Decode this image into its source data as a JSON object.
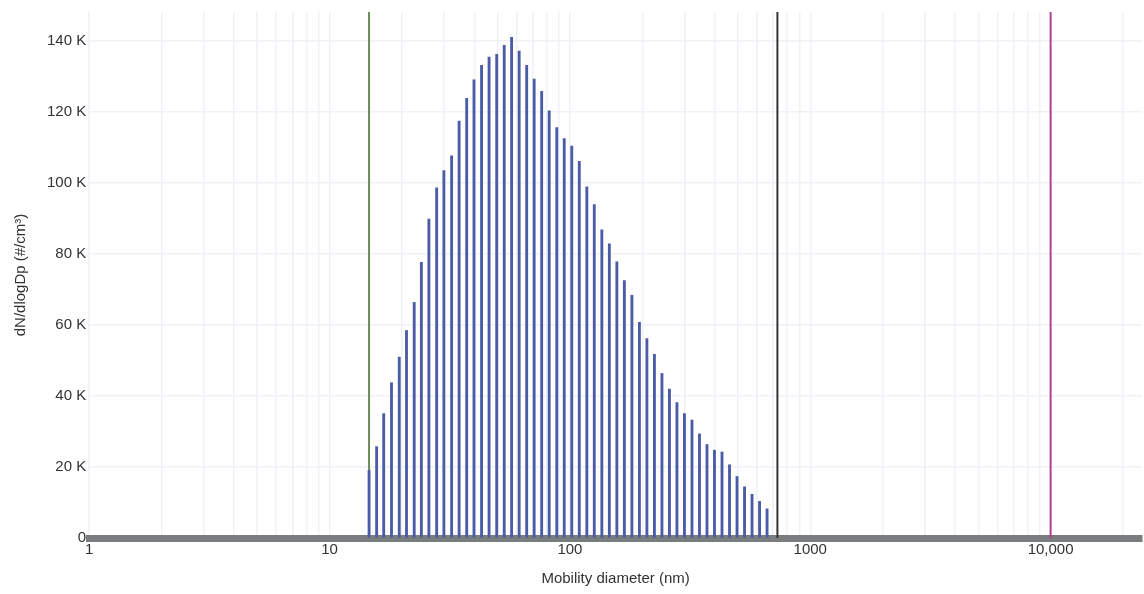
{
  "chart_data": {
    "type": "bar",
    "xlabel": "Mobility diameter (nm)",
    "ylabel": "dN/dlogDp (#/cm³)",
    "x": [
      14.6,
      15.7,
      16.8,
      18.1,
      19.5,
      20.9,
      22.5,
      24.1,
      25.9,
      27.9,
      29.9,
      32.2,
      34.6,
      37.2,
      39.9,
      42.9,
      46.1,
      49.6,
      53.3,
      57.2,
      61.5,
      66.1,
      71.0,
      76.3,
      82.0,
      88.2,
      94.7,
      101.8,
      109.4,
      117.6,
      126.3,
      135.8,
      145.9,
      156.8,
      168.5,
      181.1,
      194.6,
      209.1,
      224.7,
      241.5,
      259.5,
      278.8,
      299.6,
      322.0,
      346.0,
      371.8,
      399.5,
      429.3,
      461.4,
      495.8,
      532.8,
      572.5,
      615.2,
      661.1
    ],
    "series": [
      {
        "color": "#4b5ba6",
        "values": [
          19000,
          25700,
          35000,
          43700,
          50900,
          58400,
          66300,
          77600,
          89700,
          98500,
          103400,
          107500,
          117300,
          123700,
          128900,
          133000,
          135300,
          136100,
          138600,
          140900,
          137000,
          133000,
          129100,
          125700,
          120200,
          115500,
          112400,
          110300,
          106000,
          98800,
          93800,
          86700,
          82800,
          77700,
          72400,
          68300,
          60700,
          56100,
          51700,
          46300,
          41900,
          38100,
          35000,
          33200,
          29300,
          26300,
          24700,
          24200,
          20600,
          17300,
          14400,
          12300,
          10300,
          8200
        ]
      }
    ],
    "log": "x",
    "xlim": [
      1,
      24000
    ],
    "xticks": [
      1,
      {
        "value": 2,
        "label": null
      },
      {
        "value": 3,
        "label": null
      },
      {
        "value": 4,
        "label": null
      },
      {
        "value": 5,
        "label": null
      },
      {
        "value": 6,
        "label": null
      },
      {
        "value": 7,
        "label": null
      },
      {
        "value": 8,
        "label": null
      },
      {
        "value": 9,
        "label": null
      },
      10,
      {
        "value": 20,
        "label": null
      },
      {
        "value": 30,
        "label": null
      },
      {
        "value": 40,
        "label": null
      },
      {
        "value": 50,
        "label": null
      },
      {
        "value": 60,
        "label": null
      },
      {
        "value": 70,
        "label": null
      },
      {
        "value": 80,
        "label": null
      },
      {
        "value": 90,
        "label": null
      },
      100,
      {
        "value": 200,
        "label": null
      },
      {
        "value": 300,
        "label": null
      },
      {
        "value": 400,
        "label": null
      },
      {
        "value": 500,
        "label": null
      },
      {
        "value": 600,
        "label": null
      },
      {
        "value": 700,
        "label": null
      },
      {
        "value": 800,
        "label": null
      },
      {
        "value": 900,
        "label": null
      },
      1000,
      {
        "value": 2000,
        "label": null
      },
      {
        "value": 3000,
        "label": null
      },
      {
        "value": 4000,
        "label": null
      },
      {
        "value": 5000,
        "label": null
      },
      {
        "value": 6000,
        "label": null
      },
      {
        "value": 7000,
        "label": null
      },
      {
        "value": 8000,
        "label": null
      },
      {
        "value": 9000,
        "label": null
      },
      {
        "value": 10000,
        "label": "10,000"
      },
      {
        "value": 20000,
        "label": null
      }
    ],
    "ylim": [
      0,
      148000
    ],
    "yticks": [
      0,
      {
        "value": 20000,
        "label": "20 K"
      },
      {
        "value": 40000,
        "label": "40 K"
      },
      {
        "value": 60000,
        "label": "60 K"
      },
      {
        "value": 80000,
        "label": "80 K"
      },
      {
        "value": 100000,
        "label": "100 K"
      },
      {
        "value": 120000,
        "label": "120 K"
      },
      {
        "value": 140000,
        "label": "140 K"
      }
    ],
    "grid": true,
    "ref_lines": [
      {
        "axis": "x",
        "value": 14.6,
        "color": "#6b8a5a"
      },
      {
        "axis": "x",
        "value": 730,
        "color": "#333333"
      },
      {
        "axis": "x",
        "value": 10000,
        "color": "#b0408f"
      }
    ]
  }
}
